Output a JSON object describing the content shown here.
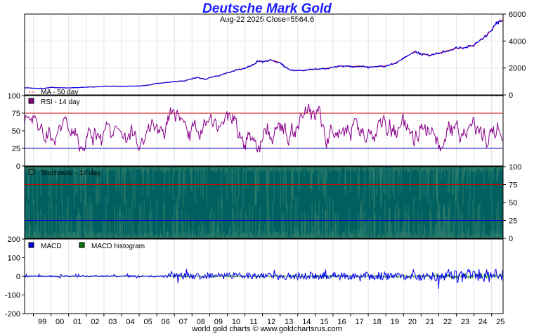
{
  "chart_data": {
    "type": "line",
    "title": "Deutsche Mark Gold",
    "subtitle": "Aug-22  2025   Close=5564.6",
    "credit": "world gold charts © www.goldchartsrus.com",
    "x_ticks": [
      "99",
      "00",
      "01",
      "02",
      "03",
      "04",
      "05",
      "06",
      "07",
      "08",
      "09",
      "10",
      "11",
      "12",
      "13",
      "14",
      "15",
      "16",
      "17",
      "18",
      "19",
      "20",
      "21",
      "22",
      "23",
      "24",
      "25"
    ],
    "x_range": [
      1998.5,
      2025.65
    ],
    "colors": {
      "price": "#0000ee",
      "ma": "#ff0000",
      "rsi": "#8a008a",
      "stoch": "#006060",
      "macd": "#0000ee",
      "hist": "#007700",
      "ref75": "#cc0000",
      "ref25": "#0000cc"
    },
    "panels": {
      "price": {
        "ylim": [
          0,
          6000
        ],
        "yticks": [
          "0",
          "2000",
          "4000",
          "6000"
        ],
        "legend": [
          "MA - 50 day"
        ],
        "series": [
          {
            "name": "Price",
            "x": [
              1998.5,
              1999.0,
              1999.5,
              1999.8,
              2000.0,
              2000.5,
              2001.0,
              2001.5,
              2002.0,
              2002.5,
              2003.0,
              2003.5,
              2004.0,
              2004.5,
              2005.0,
              2005.5,
              2006.0,
              2006.4,
              2006.8,
              2007.0,
              2007.5,
              2008.0,
              2008.3,
              2008.8,
              2009.0,
              2009.5,
              2010.0,
              2010.5,
              2011.0,
              2011.5,
              2011.7,
              2012.0,
              2012.5,
              2013.0,
              2013.3,
              2013.6,
              2014.0,
              2014.5,
              2015.0,
              2015.5,
              2016.0,
              2016.5,
              2017.0,
              2017.5,
              2018.0,
              2018.5,
              2019.0,
              2019.5,
              2020.0,
              2020.6,
              2021.0,
              2021.5,
              2022.0,
              2022.5,
              2023.0,
              2023.5,
              2024.0,
              2024.5,
              2025.0,
              2025.3,
              2025.65
            ],
            "values": [
              540,
              500,
              480,
              520,
              560,
              530,
              520,
              540,
              580,
              600,
              640,
              650,
              640,
              650,
              660,
              720,
              860,
              900,
              960,
              1000,
              1020,
              1200,
              1300,
              1150,
              1300,
              1420,
              1640,
              1840,
              1980,
              2240,
              2500,
              2450,
              2600,
              2400,
              2050,
              1850,
              1800,
              1850,
              1900,
              1950,
              2050,
              2150,
              2100,
              2150,
              2050,
              2100,
              2150,
              2350,
              2700,
              3200,
              3050,
              2950,
              3100,
              3300,
              3450,
              3500,
              3700,
              4200,
              4800,
              5400,
              5600
            ]
          }
        ]
      },
      "rsi": {
        "ylim": [
          0,
          100
        ],
        "left_ticks": [
          "0",
          "25",
          "50",
          "75",
          "100"
        ],
        "ref_lines": [
          75,
          25
        ],
        "legend": [
          "RSI - 14 day"
        ]
      },
      "stochastic": {
        "ylim": [
          0,
          100
        ],
        "right_ticks": [
          "0",
          "25",
          "50",
          "75",
          "100"
        ],
        "ref_lines": [
          75,
          25
        ],
        "legend": [
          "Stochastic - 14 day"
        ]
      },
      "macd": {
        "ylim": [
          -200,
          200
        ],
        "left_ticks": [
          "-200",
          "-100",
          "0",
          "100",
          "200"
        ],
        "legend": [
          "MACD",
          "MACD histogram"
        ]
      }
    }
  }
}
